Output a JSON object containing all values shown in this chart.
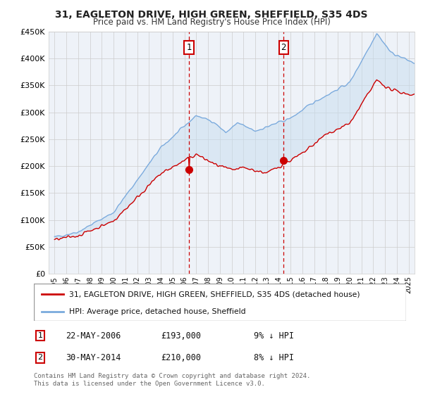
{
  "title": "31, EAGLETON DRIVE, HIGH GREEN, SHEFFIELD, S35 4DS",
  "subtitle": "Price paid vs. HM Land Registry's House Price Index (HPI)",
  "legend_line1": "31, EAGLETON DRIVE, HIGH GREEN, SHEFFIELD, S35 4DS (detached house)",
  "legend_line2": "HPI: Average price, detached house, Sheffield",
  "transaction1_date": "22-MAY-2006",
  "transaction1_price": 193000,
  "transaction1_price_str": "£193,000",
  "transaction1_pct": "9% ↓ HPI",
  "transaction1_year": 2006.39,
  "transaction2_date": "30-MAY-2014",
  "transaction2_price": 210000,
  "transaction2_price_str": "£210,000",
  "transaction2_pct": "8% ↓ HPI",
  "transaction2_year": 2014.41,
  "footer1": "Contains HM Land Registry data © Crown copyright and database right 2024.",
  "footer2": "This data is licensed under the Open Government Licence v3.0.",
  "ylim": [
    0,
    450000
  ],
  "xlim_start": 1994.5,
  "xlim_end": 2025.5,
  "background_color": "#ffffff",
  "plot_bg_color": "#eef2f8",
  "grid_color": "#cccccc",
  "hpi_color": "#7aaadd",
  "price_color": "#cc0000",
  "vline_color": "#cc0000",
  "marker_color": "#cc0000",
  "shade_color": "#c8ddf0"
}
